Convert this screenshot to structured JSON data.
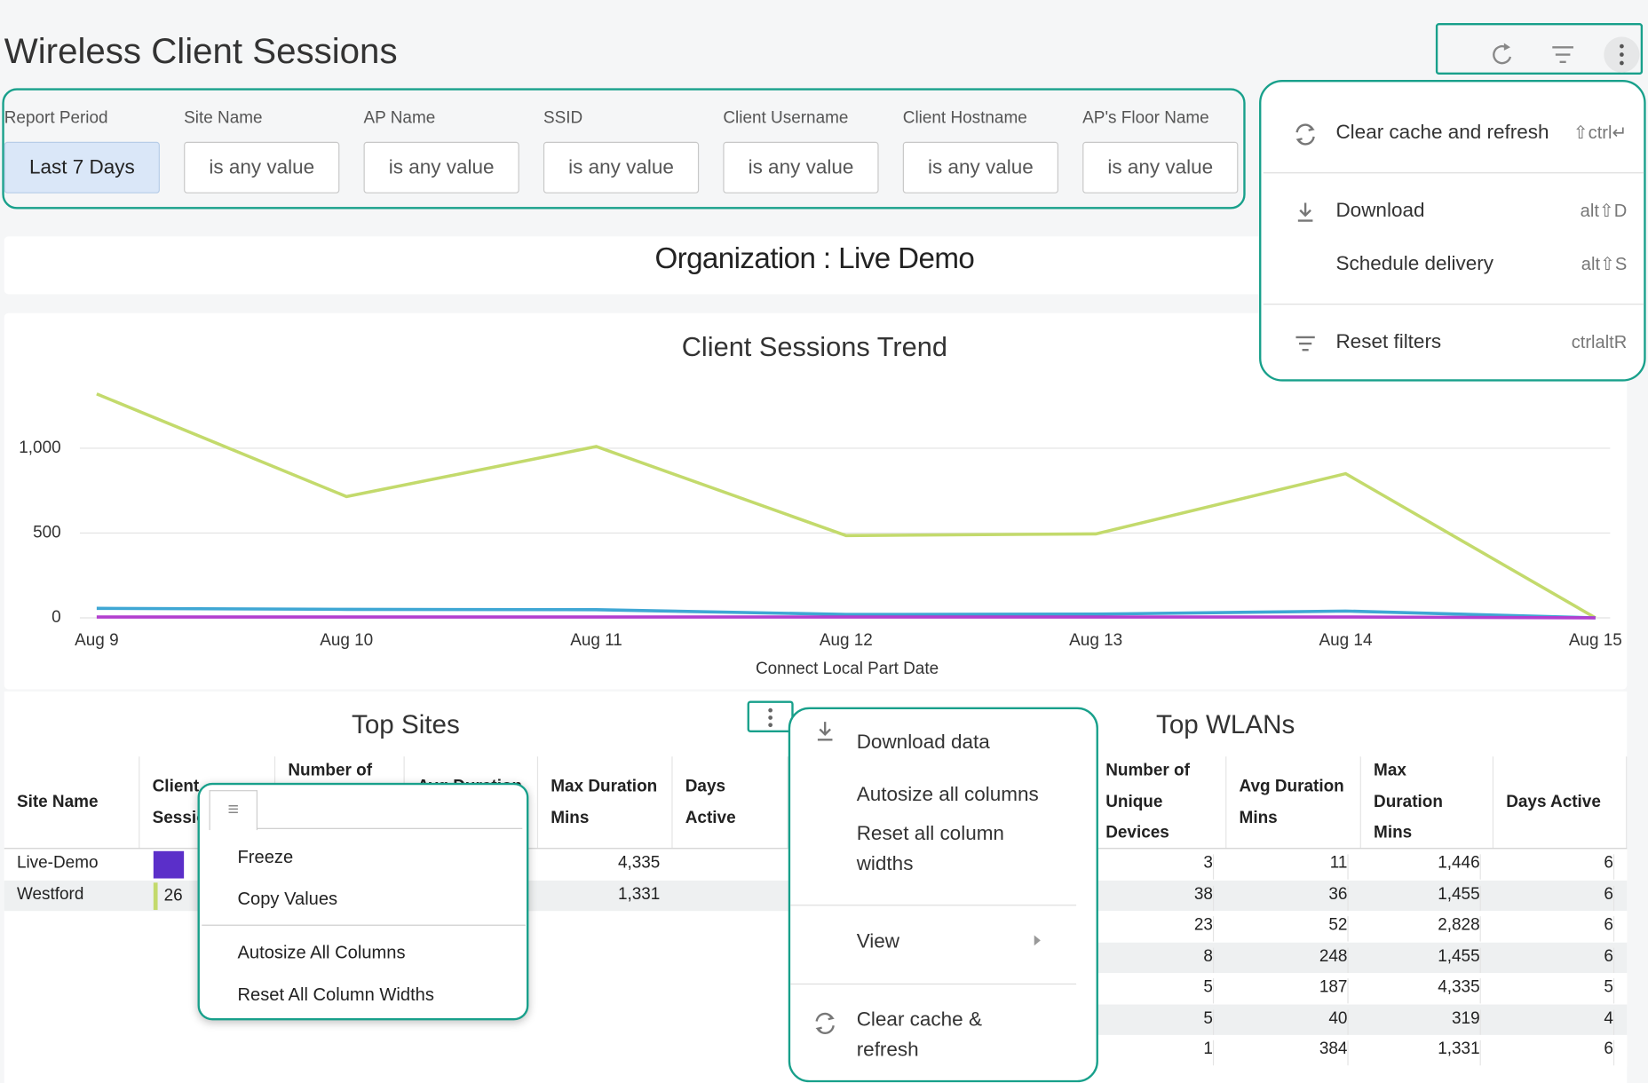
{
  "header": {
    "title": "Wireless Client Sessions"
  },
  "filters": [
    {
      "label": "Report Period",
      "value": "Last 7 Days"
    },
    {
      "label": "Site Name",
      "value": "is any value"
    },
    {
      "label": "AP Name",
      "value": "is any value"
    },
    {
      "label": "SSID",
      "value": "is any value"
    },
    {
      "label": "Client Username",
      "value": "is any value"
    },
    {
      "label": "Client Hostname",
      "value": "is any value"
    },
    {
      "label": "AP's Floor Name",
      "value": "is any value"
    }
  ],
  "banner": "Organization : Live Demo",
  "dashboard_menu": [
    [
      {
        "label": "Clear cache and refresh",
        "shortcut": "⇧ctrl↵"
      }
    ],
    [
      {
        "label": "Download",
        "shortcut": "alt⇧D"
      },
      {
        "label": "Schedule delivery",
        "shortcut": "alt⇧S"
      }
    ],
    [
      {
        "label": "Reset filters",
        "shortcut": "ctrlaltR"
      }
    ]
  ],
  "chart_data": {
    "type": "line",
    "title": "Client Sessions Trend",
    "x_label": "Connect Local Part Date",
    "categories": [
      "Aug 9",
      "Aug 10",
      "Aug 11",
      "Aug 12",
      "Aug 13",
      "Aug 14",
      "Aug 15"
    ],
    "series": [
      {
        "color": "#c3da6c",
        "values": [
          1320,
          715,
          1010,
          485,
          495,
          850,
          0
        ]
      },
      {
        "color": "#3fa7d4",
        "values": [
          56,
          50,
          48,
          20,
          22,
          40,
          0
        ]
      },
      {
        "color": "#b23fcf",
        "values": [
          5,
          5,
          5,
          5,
          5,
          5,
          0
        ]
      }
    ],
    "ylim": [
      0,
      1400
    ],
    "yticks": [
      0,
      500,
      {
        "value": 1000,
        "label": "1,000"
      }
    ],
    "grid": true
  },
  "top_sites": {
    "title": "Top Sites",
    "columns": [
      "Site Name",
      "Client Sessions",
      "Number of Unique Devices",
      "Avg Duration Mins",
      "Max Duration Mins",
      "Days Active"
    ],
    "rows": [
      {
        "site": "Live-Demo",
        "max_duration": "4,335"
      },
      {
        "site": "Westford",
        "client_sessions": "26",
        "max_duration": "1,331"
      }
    ]
  },
  "column_menu": [
    [
      "Freeze",
      "Copy Values"
    ],
    [
      "Autosize All Columns",
      "Reset All Column Widths"
    ]
  ],
  "tile_menu": [
    [
      "Download data",
      "Autosize all columns",
      "Reset all column widths"
    ],
    [
      "View"
    ],
    [
      "Clear cache & refresh"
    ]
  ],
  "top_wlans": {
    "title": "Top WLANs",
    "columns": [
      "Number of Unique Devices",
      "Avg Duration Mins",
      "Max Duration Mins",
      "Days Active"
    ],
    "rows": [
      [
        "3",
        "11",
        "1,446",
        "6"
      ],
      [
        "38",
        "36",
        "1,455",
        "6"
      ],
      [
        "23",
        "52",
        "2,828",
        "6"
      ],
      [
        "8",
        "248",
        "1,455",
        "6"
      ],
      [
        "5",
        "187",
        "4,335",
        "5"
      ],
      [
        "5",
        "40",
        "319",
        "4"
      ],
      [
        "1",
        "384",
        "1,331",
        "6"
      ]
    ]
  }
}
